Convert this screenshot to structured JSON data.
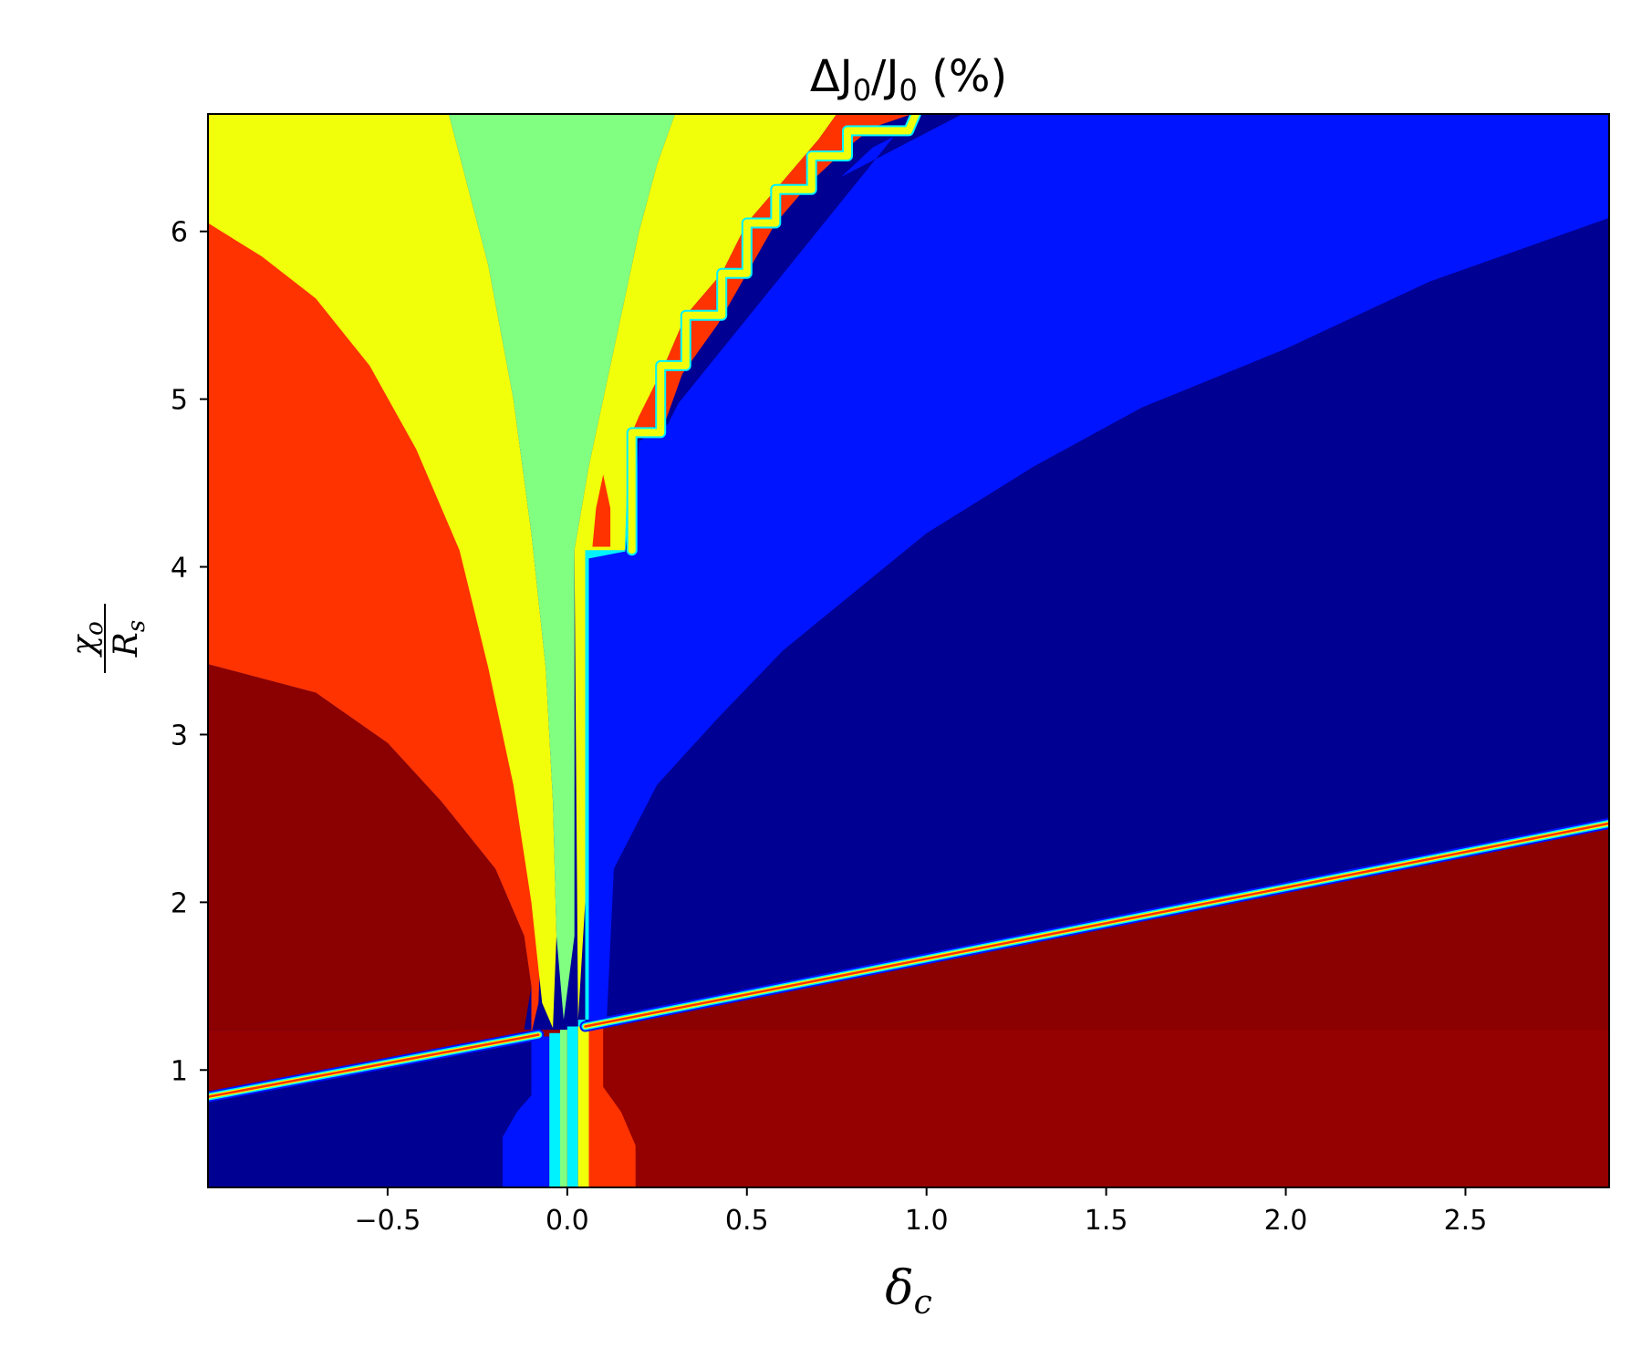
{
  "chart_data": {
    "type": "heatmap",
    "style": "filled contour (jet colormap)",
    "title": "ΔJ0/J0 (%)",
    "title_parts": {
      "delta": "Δ",
      "sym": "J",
      "sub": "0",
      "slash": "/",
      "paren": " (%)"
    },
    "xlabel": "δc",
    "xlabel_parts": {
      "sym": "δ",
      "sub": "c"
    },
    "ylabel": "χo/Rs",
    "ylabel_parts": {
      "num": "χ",
      "num_sub": "o",
      "den": "R",
      "den_sub": "s"
    },
    "xlim": [
      -1.0,
      2.9
    ],
    "ylim": [
      0.3,
      6.7
    ],
    "x_ticks": [
      -0.5,
      0.0,
      0.5,
      1.0,
      1.5,
      2.0,
      2.5
    ],
    "x_tick_labels": [
      "−0.5",
      "0.0",
      "0.5",
      "1.0",
      "1.5",
      "2.0",
      "2.5"
    ],
    "y_ticks": [
      1,
      2,
      3,
      4,
      5,
      6
    ],
    "y_tick_labels": [
      "1",
      "2",
      "3",
      "4",
      "5",
      "6"
    ],
    "grid": false,
    "colorbar": false,
    "colors": {
      "dark_red": "#8b0000",
      "red_low": "#950000",
      "red": "#ff3300",
      "yellow": "#f2ff0a",
      "green": "#80ff80",
      "cyan": "#00f2ff",
      "blue": "#0014ff",
      "navy": "#000093"
    },
    "regions": [
      {
        "name": "right-lower-red",
        "color": "red_low",
        "points": [
          [
            -0.32,
            0.3
          ],
          [
            2.9,
            0.3
          ],
          [
            2.9,
            2.44
          ],
          [
            0.05,
            1.24
          ],
          [
            -0.32,
            1.24
          ]
        ]
      },
      {
        "name": "upper-left-red-band",
        "color": "red_low",
        "points": [
          [
            -1.0,
            0.86
          ],
          [
            -0.08,
            1.24
          ],
          [
            -1.0,
            1.24
          ]
        ]
      },
      {
        "name": "dark-red-upper",
        "color": "dark_red",
        "points": [
          [
            -1.0,
            1.24
          ],
          [
            -0.12,
            1.24
          ],
          [
            -0.1,
            1.5
          ],
          [
            -0.12,
            1.8
          ],
          [
            -0.2,
            2.2
          ],
          [
            -0.35,
            2.6
          ],
          [
            -0.5,
            2.95
          ],
          [
            -0.7,
            3.25
          ],
          [
            -1.0,
            3.42
          ]
        ]
      },
      {
        "name": "dark-red-lower-right",
        "color": "dark_red",
        "points": [
          [
            0.05,
            1.24
          ],
          [
            2.9,
            1.24
          ],
          [
            2.9,
            2.44
          ]
        ]
      },
      {
        "name": "left-red",
        "color": "red",
        "points": [
          [
            -1.0,
            3.42
          ],
          [
            -0.7,
            3.25
          ],
          [
            -0.5,
            2.95
          ],
          [
            -0.35,
            2.6
          ],
          [
            -0.2,
            2.2
          ],
          [
            -0.12,
            1.8
          ],
          [
            -0.1,
            1.5
          ],
          [
            -0.1,
            1.22
          ],
          [
            -0.08,
            1.4
          ],
          [
            -0.07,
            2.0
          ],
          [
            -0.1,
            2.8
          ],
          [
            -0.14,
            3.6
          ],
          [
            -0.2,
            4.2
          ],
          [
            -0.3,
            4.8
          ],
          [
            -0.45,
            5.4
          ],
          [
            -0.6,
            5.85
          ],
          [
            -0.78,
            6.25
          ],
          [
            -0.9,
            6.5
          ],
          [
            -1.0,
            6.6
          ]
        ]
      },
      {
        "name": "left-yellow",
        "color": "yellow",
        "points": [
          [
            -1.0,
            6.05
          ],
          [
            -0.85,
            5.85
          ],
          [
            -0.7,
            5.6
          ],
          [
            -0.55,
            5.2
          ],
          [
            -0.42,
            4.7
          ],
          [
            -0.3,
            4.1
          ],
          [
            -0.22,
            3.4
          ],
          [
            -0.15,
            2.7
          ],
          [
            -0.1,
            2.0
          ],
          [
            -0.07,
            1.4
          ],
          [
            -0.04,
            1.25
          ],
          [
            -0.03,
            1.8
          ],
          [
            -0.04,
            2.6
          ],
          [
            -0.06,
            3.4
          ],
          [
            -0.1,
            4.2
          ],
          [
            -0.15,
            5.0
          ],
          [
            -0.22,
            5.8
          ],
          [
            -0.33,
            6.7
          ],
          [
            -1.0,
            6.7
          ]
        ]
      },
      {
        "name": "center-green",
        "color": "green",
        "points": [
          [
            -0.33,
            6.7
          ],
          [
            -0.22,
            5.8
          ],
          [
            -0.15,
            5.0
          ],
          [
            -0.1,
            4.2
          ],
          [
            -0.06,
            3.4
          ],
          [
            -0.04,
            2.6
          ],
          [
            -0.03,
            1.8
          ],
          [
            -0.01,
            1.3
          ],
          [
            0.02,
            1.8
          ],
          [
            0.02,
            4.1
          ],
          [
            0.06,
            4.6
          ],
          [
            0.11,
            5.1
          ],
          [
            0.16,
            5.6
          ],
          [
            0.2,
            6.0
          ],
          [
            0.25,
            6.4
          ],
          [
            0.3,
            6.7
          ]
        ]
      },
      {
        "name": "right-yellow",
        "color": "yellow",
        "points": [
          [
            0.3,
            6.7
          ],
          [
            0.25,
            6.4
          ],
          [
            0.2,
            6.0
          ],
          [
            0.16,
            5.6
          ],
          [
            0.11,
            5.1
          ],
          [
            0.06,
            4.6
          ],
          [
            0.02,
            4.1
          ],
          [
            0.03,
            1.3
          ],
          [
            0.05,
            2.0
          ],
          [
            0.05,
            4.05
          ],
          [
            0.16,
            4.1
          ],
          [
            0.18,
            4.8
          ],
          [
            0.27,
            5.2
          ],
          [
            0.33,
            5.5
          ],
          [
            0.43,
            5.75
          ],
          [
            0.5,
            6.05
          ],
          [
            0.6,
            6.3
          ],
          [
            0.7,
            6.55
          ],
          [
            0.75,
            6.7
          ]
        ]
      },
      {
        "name": "right-red-wedge",
        "color": "red",
        "points": [
          [
            0.75,
            6.7
          ],
          [
            0.7,
            6.55
          ],
          [
            0.6,
            6.3
          ],
          [
            0.5,
            6.05
          ],
          [
            0.43,
            5.75
          ],
          [
            0.33,
            5.5
          ],
          [
            0.27,
            5.2
          ],
          [
            0.2,
            4.9
          ],
          [
            0.18,
            4.8
          ],
          [
            0.27,
            4.85
          ],
          [
            0.32,
            5.15
          ],
          [
            0.42,
            5.45
          ],
          [
            0.5,
            5.75
          ],
          [
            0.58,
            6.05
          ],
          [
            0.68,
            6.3
          ],
          [
            0.78,
            6.5
          ],
          [
            0.85,
            6.62
          ],
          [
            0.96,
            6.7
          ]
        ]
      },
      {
        "name": "small-red-spike",
        "color": "red",
        "points": [
          [
            0.07,
            4.12
          ],
          [
            0.12,
            4.12
          ],
          [
            0.12,
            4.35
          ],
          [
            0.1,
            4.55
          ],
          [
            0.08,
            4.35
          ]
        ]
      },
      {
        "name": "cyan-strip",
        "color": "cyan",
        "points": [
          [
            0.0,
            1.26
          ],
          [
            0.05,
            1.26
          ],
          [
            0.05,
            4.1
          ],
          [
            0.16,
            4.1
          ],
          [
            0.17,
            4.7
          ],
          [
            0.18,
            4.8
          ],
          [
            0.19,
            4.75
          ],
          [
            0.17,
            4.3
          ],
          [
            0.16,
            4.05
          ],
          [
            0.06,
            4.05
          ],
          [
            0.06,
            1.3
          ],
          [
            0.03,
            1.3
          ],
          [
            0.03,
            0.3
          ],
          [
            0.0,
            0.3
          ]
        ]
      },
      {
        "name": "right-blue",
        "color": "blue",
        "points": [
          [
            0.06,
            1.3
          ],
          [
            0.11,
            1.3
          ],
          [
            0.13,
            2.2
          ],
          [
            0.25,
            2.7
          ],
          [
            0.42,
            3.1
          ],
          [
            0.6,
            3.5
          ],
          [
            0.8,
            3.85
          ],
          [
            1.0,
            4.2
          ],
          [
            1.3,
            4.6
          ],
          [
            1.6,
            4.95
          ],
          [
            2.0,
            5.3
          ],
          [
            2.4,
            5.7
          ],
          [
            2.9,
            6.08
          ],
          [
            2.9,
            6.7
          ],
          [
            1.1,
            6.7
          ],
          [
            0.96,
            6.62
          ],
          [
            0.85,
            6.5
          ],
          [
            0.75,
            6.3
          ],
          [
            0.65,
            6.05
          ],
          [
            0.55,
            5.75
          ],
          [
            0.45,
            5.45
          ],
          [
            0.35,
            5.15
          ],
          [
            0.28,
            4.85
          ],
          [
            0.2,
            4.75
          ],
          [
            0.18,
            4.1
          ],
          [
            0.06,
            4.05
          ]
        ]
      },
      {
        "name": "right-navy",
        "color": "navy",
        "points": [
          [
            0.11,
            1.3
          ],
          [
            2.9,
            2.46
          ],
          [
            2.9,
            6.08
          ],
          [
            2.4,
            5.7
          ],
          [
            2.0,
            5.3
          ],
          [
            1.6,
            4.95
          ],
          [
            1.3,
            4.6
          ],
          [
            1.0,
            4.2
          ],
          [
            0.8,
            3.85
          ],
          [
            0.6,
            3.5
          ],
          [
            0.42,
            3.1
          ],
          [
            0.25,
            2.7
          ],
          [
            0.13,
            2.2
          ]
        ]
      },
      {
        "name": "right-navy-upper",
        "color": "navy",
        "points": [
          [
            0.96,
            6.7
          ],
          [
            1.1,
            6.7
          ],
          [
            0.65,
            6.2
          ],
          [
            0.45,
            5.55
          ],
          [
            0.3,
            4.95
          ]
        ]
      },
      {
        "name": "lower-left-navy",
        "color": "navy",
        "points": [
          [
            -1.0,
            0.3
          ],
          [
            -0.18,
            0.3
          ],
          [
            -0.18,
            0.6
          ],
          [
            -0.1,
            0.85
          ],
          [
            -0.1,
            1.2
          ],
          [
            -1.0,
            0.84
          ]
        ]
      },
      {
        "name": "lower-left-blue",
        "color": "blue",
        "points": [
          [
            -0.18,
            0.3
          ],
          [
            -0.05,
            0.3
          ],
          [
            -0.05,
            1.2
          ],
          [
            -0.1,
            1.2
          ],
          [
            -0.1,
            0.85
          ],
          [
            -0.14,
            0.75
          ],
          [
            -0.18,
            0.6
          ]
        ]
      },
      {
        "name": "lower-cyan",
        "color": "cyan",
        "points": [
          [
            -0.05,
            0.3
          ],
          [
            -0.02,
            0.3
          ],
          [
            -0.02,
            1.22
          ],
          [
            -0.05,
            1.22
          ]
        ]
      },
      {
        "name": "lower-green",
        "color": "green",
        "points": [
          [
            -0.02,
            0.3
          ],
          [
            0.0,
            0.3
          ],
          [
            0.0,
            1.24
          ],
          [
            -0.02,
            1.24
          ]
        ]
      },
      {
        "name": "lower-yellow",
        "color": "yellow",
        "points": [
          [
            0.03,
            0.3
          ],
          [
            0.06,
            0.3
          ],
          [
            0.06,
            1.26
          ],
          [
            0.03,
            1.26
          ]
        ]
      },
      {
        "name": "lower-right-red",
        "color": "red",
        "points": [
          [
            0.06,
            0.3
          ],
          [
            0.19,
            0.3
          ],
          [
            0.19,
            0.55
          ],
          [
            0.15,
            0.75
          ],
          [
            0.1,
            0.9
          ],
          [
            0.1,
            1.26
          ],
          [
            0.06,
            1.26
          ]
        ]
      }
    ],
    "lines": [
      {
        "name": "diagonal-discontinuity-left",
        "colors": [
          "blue",
          "cyan",
          "yellow",
          "red"
        ],
        "points": [
          [
            -1.0,
            0.84
          ],
          [
            -0.08,
            1.21
          ]
        ]
      },
      {
        "name": "diagonal-discontinuity-right",
        "colors": [
          "blue",
          "cyan",
          "yellow",
          "red"
        ],
        "points": [
          [
            0.05,
            1.26
          ],
          [
            2.9,
            2.47
          ]
        ]
      },
      {
        "name": "staircase-edge",
        "colors": [
          "cyan",
          "yellow"
        ],
        "points": [
          [
            0.18,
            4.1
          ],
          [
            0.18,
            4.8
          ],
          [
            0.26,
            4.8
          ],
          [
            0.26,
            5.2
          ],
          [
            0.33,
            5.2
          ],
          [
            0.33,
            5.5
          ],
          [
            0.43,
            5.5
          ],
          [
            0.43,
            5.75
          ],
          [
            0.5,
            5.75
          ],
          [
            0.5,
            6.05
          ],
          [
            0.58,
            6.05
          ],
          [
            0.58,
            6.25
          ],
          [
            0.68,
            6.25
          ],
          [
            0.68,
            6.45
          ],
          [
            0.78,
            6.45
          ],
          [
            0.78,
            6.6
          ],
          [
            0.95,
            6.6
          ],
          [
            0.97,
            6.7
          ]
        ]
      }
    ]
  }
}
